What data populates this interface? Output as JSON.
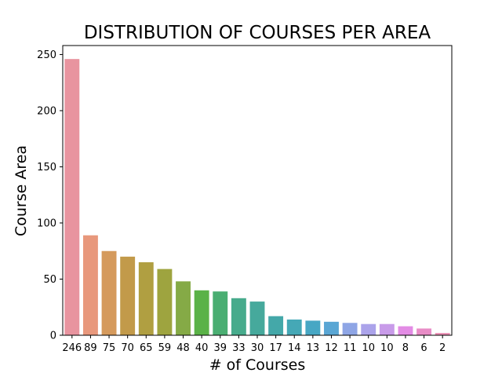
{
  "chart_data": {
    "type": "bar",
    "title": "DISTRIBUTION OF COURSES PER AREA",
    "xlabel": "# of Courses",
    "ylabel": "Course Area",
    "categories": [
      "246",
      "89",
      "75",
      "70",
      "65",
      "59",
      "48",
      "40",
      "39",
      "33",
      "30",
      "17",
      "14",
      "13",
      "12",
      "11",
      "10",
      "10",
      "8",
      "6",
      "2"
    ],
    "values": [
      246,
      89,
      75,
      70,
      65,
      59,
      48,
      40,
      39,
      33,
      30,
      17,
      14,
      13,
      12,
      11,
      10,
      10,
      8,
      6,
      2
    ],
    "colors": [
      "#e8949f",
      "#e8987c",
      "#d59a5c",
      "#c29a4a",
      "#b09f41",
      "#9ea43f",
      "#85aa46",
      "#5ab247",
      "#4aae72",
      "#47ab8c",
      "#46a99c",
      "#44a8a9",
      "#45a8b6",
      "#47a7c4",
      "#59a6d4",
      "#8ea5e5",
      "#aba3ea",
      "#c89be9",
      "#e38ce5",
      "#e88cc6",
      "#ea8eb3"
    ],
    "ylim": [
      0,
      258
    ],
    "yticks": [
      0,
      50,
      100,
      150,
      200,
      250
    ],
    "grid": false,
    "legend": "none"
  }
}
